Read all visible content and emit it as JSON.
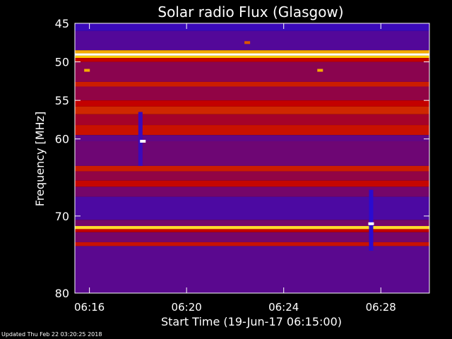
{
  "footer": {
    "updated": "Updated Thu Feb 22 03:20:25 2018"
  },
  "chart_data": {
    "type": "heatmap",
    "title": "Solar radio Flux (Glasgow)",
    "xlabel": "Start Time (19-Jun-17 06:15:00)",
    "ylabel": "Frequency [MHz]",
    "x_unit": "minutes after 06:00",
    "xlim": [
      15.4,
      30.0
    ],
    "ylim": [
      45,
      80
    ],
    "y_inverted": true,
    "x_ticks": [
      {
        "value": 16,
        "label": "06:16"
      },
      {
        "value": 20,
        "label": "06:20"
      },
      {
        "value": 24,
        "label": "06:24"
      },
      {
        "value": 28,
        "label": "06:28"
      }
    ],
    "y_ticks": [
      {
        "value": 45,
        "label": "45"
      },
      {
        "value": 50,
        "label": "50"
      },
      {
        "value": 55,
        "label": "55"
      },
      {
        "value": 60,
        "label": "60"
      },
      {
        "value": 70,
        "label": "70"
      },
      {
        "value": 80,
        "label": "80"
      }
    ],
    "colors": {
      "low": "#2a0bd0",
      "mid": "#c40000",
      "high": "#ffd400",
      "peak": "#ffffff",
      "background": "#000000"
    },
    "frequency_bands": [
      {
        "from": 45.0,
        "to": 46.0,
        "level": 0.05
      },
      {
        "from": 46.0,
        "to": 48.5,
        "level": 0.12
      },
      {
        "from": 48.5,
        "to": 48.9,
        "level": 0.75
      },
      {
        "from": 48.9,
        "to": 49.2,
        "level": 1.0
      },
      {
        "from": 49.2,
        "to": 49.5,
        "level": 0.8
      },
      {
        "from": 49.5,
        "to": 50.0,
        "level": 0.45
      },
      {
        "from": 50.0,
        "to": 52.6,
        "level": 0.28
      },
      {
        "from": 52.6,
        "to": 53.2,
        "level": 0.5
      },
      {
        "from": 53.2,
        "to": 55.0,
        "level": 0.3
      },
      {
        "from": 55.0,
        "to": 55.8,
        "level": 0.45
      },
      {
        "from": 55.8,
        "to": 56.8,
        "level": 0.52
      },
      {
        "from": 56.8,
        "to": 58.2,
        "level": 0.36
      },
      {
        "from": 58.2,
        "to": 59.5,
        "level": 0.48
      },
      {
        "from": 59.5,
        "to": 60.3,
        "level": 0.16
      },
      {
        "from": 60.3,
        "to": 63.5,
        "level": 0.2
      },
      {
        "from": 63.5,
        "to": 64.2,
        "level": 0.5
      },
      {
        "from": 64.2,
        "to": 65.4,
        "level": 0.3
      },
      {
        "from": 65.4,
        "to": 66.2,
        "level": 0.46
      },
      {
        "from": 66.2,
        "to": 67.5,
        "level": 0.22
      },
      {
        "from": 67.5,
        "to": 70.5,
        "level": 0.1
      },
      {
        "from": 70.5,
        "to": 71.3,
        "level": 0.22
      },
      {
        "from": 71.3,
        "to": 71.7,
        "level": 0.85
      },
      {
        "from": 71.7,
        "to": 72.1,
        "level": 0.45
      },
      {
        "from": 72.1,
        "to": 73.4,
        "level": 0.22
      },
      {
        "from": 73.4,
        "to": 73.9,
        "level": 0.48
      },
      {
        "from": 73.9,
        "to": 80.0,
        "level": 0.14
      }
    ],
    "bursts": [
      {
        "time": 18.1,
        "freq_from": 56.5,
        "freq_to": 63.5,
        "level": 0.05
      },
      {
        "time": 27.6,
        "freq_from": 66.6,
        "freq_to": 74.5,
        "level": 0.0
      }
    ],
    "spots": [
      {
        "time": 18.2,
        "freq": 60.3,
        "level": 1.0
      },
      {
        "time": 15.9,
        "freq": 51.1,
        "level": 0.75
      },
      {
        "time": 25.5,
        "freq": 51.1,
        "level": 0.75
      },
      {
        "time": 27.6,
        "freq": 71.0,
        "level": 1.0
      },
      {
        "time": 22.5,
        "freq": 47.5,
        "level": 0.6
      }
    ]
  }
}
